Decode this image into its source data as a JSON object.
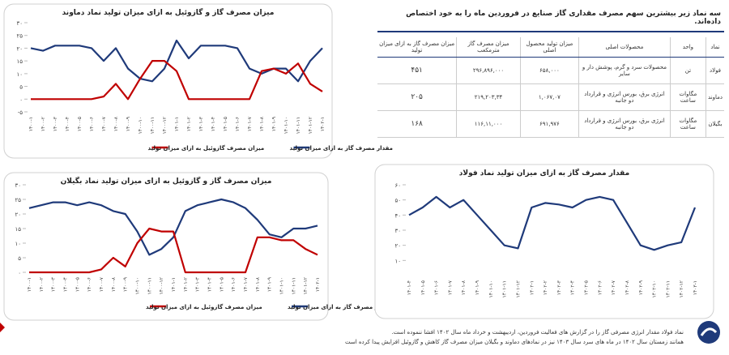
{
  "chart_data": [
    {
      "type": "line",
      "title": "میزان مصرف گاز و گازوئیل به ازای میزان تولید نماد دماوند",
      "categories": [
        "۱۴۰۰-۱",
        "۱۴۰۰-۲",
        "۱۴۰۰-۳",
        "۱۴۰۰-۴",
        "۱۴۰۰-۵",
        "۱۴۰۰-۶",
        "۱۴۰۰-۷",
        "۱۴۰۰-۸",
        "۱۴۰۰-۹",
        "۱۴۰۰-۱۰",
        "۱۴۰۰-۱۱",
        "۱۴۰۰-۱۲",
        "۱۴۰۱-۱",
        "۱۴۰۱-۲",
        "۱۴۰۱-۳",
        "۱۴۰۱-۴",
        "۱۴۰۱-۵",
        "۱۴۰۱-۶",
        "۱۴۰۱-۷",
        "۱۴۰۱-۸",
        "۱۴۰۱-۹",
        "۱۴۰۱-۱۰",
        "۱۴۰۱-۱۱",
        "۱۴۰۱-۱۲",
        "۱۴۰۲-۱"
      ],
      "series": [
        {
          "name": "مقدار مصرف گاز به ازای میزان تولید",
          "color": "#1f3a7a",
          "values": [
            20,
            19,
            21,
            21,
            21,
            20,
            15,
            20,
            12,
            8,
            7,
            12,
            23,
            16,
            21,
            21,
            21,
            20,
            12,
            10,
            12,
            12,
            7,
            15,
            20
          ]
        },
        {
          "name": "میزان مصرف گازوئیل به ازای میزان تولید",
          "color": "#c00000",
          "values": [
            0,
            0,
            0,
            0,
            0,
            0,
            1,
            6,
            0,
            8,
            15,
            15,
            11,
            0,
            0,
            0,
            0,
            0,
            0,
            11,
            12,
            10,
            14,
            6,
            3
          ]
        }
      ],
      "ylim": [
        -5,
        30
      ],
      "yticks": [
        {
          "value": -5,
          "label": "-۵"
        },
        {
          "value": 0,
          "label": "۰"
        },
        {
          "value": 5,
          "label": "۵"
        },
        {
          "value": 10,
          "label": "۱۰"
        },
        {
          "value": 15,
          "label": "۱۵"
        },
        {
          "value": 20,
          "label": "۲۰"
        },
        {
          "value": 25,
          "label": "۲۵"
        },
        {
          "value": 30,
          "label": "۳۰"
        }
      ]
    },
    {
      "type": "line",
      "title": "میزان مصرف گاز و گازوئیل به ازای میزان تولید نماد بگیلان",
      "categories": [
        "۱۴۰۰-۱",
        "۱۴۰۰-۲",
        "۱۴۰۰-۳",
        "۱۴۰۰-۴",
        "۱۴۰۰-۵",
        "۱۴۰۰-۶",
        "۱۴۰۰-۷",
        "۱۴۰۰-۸",
        "۱۴۰۰-۹",
        "۱۴۰۰-۱۰",
        "۱۴۰۰-۱۱",
        "۱۴۰۰-۱۲",
        "۱۴۰۱-۱",
        "۱۴۰۱-۲",
        "۱۴۰۱-۳",
        "۱۴۰۱-۴",
        "۱۴۰۱-۵",
        "۱۴۰۱-۶",
        "۱۴۰۱-۷",
        "۱۴۰۱-۸",
        "۱۴۰۱-۹",
        "۱۴۰۱-۱۰",
        "۱۴۰۱-۱۱",
        "۱۴۰۱-۱۲",
        "۱۴۰۲-۱"
      ],
      "series": [
        {
          "name": "مقدار مصرف گاز به ازای میزان تولید",
          "color": "#1f3a7a",
          "values": [
            22,
            23,
            24,
            24,
            23,
            24,
            23,
            21,
            20,
            14,
            6,
            8,
            12,
            21,
            23,
            24,
            25,
            24,
            22,
            18,
            13,
            12,
            15,
            15,
            16
          ]
        },
        {
          "name": "میزان مصرف گازوئیل به ازای میزان تولید",
          "color": "#c00000",
          "values": [
            0,
            0,
            0,
            0,
            0,
            0,
            1,
            5,
            2,
            10,
            15,
            14,
            14,
            0,
            0,
            0,
            0,
            0,
            0,
            12,
            12,
            11,
            11,
            8,
            6
          ]
        }
      ],
      "ylim": [
        0,
        30
      ],
      "yticks": [
        {
          "value": 0,
          "label": "۰"
        },
        {
          "value": 5,
          "label": "۵"
        },
        {
          "value": 10,
          "label": "۱۰"
        },
        {
          "value": 15,
          "label": "۱۵"
        },
        {
          "value": 20,
          "label": "۲۰"
        },
        {
          "value": 25,
          "label": "۲۵"
        },
        {
          "value": 30,
          "label": "۳۰"
        }
      ]
    },
    {
      "type": "line",
      "title": "مقدار مصرف گاز به ازای میزان تولید نماد فولاد",
      "categories": [
        "۱۴۰۱-۴",
        "۱۴۰۱-۵",
        "۱۴۰۱-۶",
        "۱۴۰۱-۷",
        "۱۴۰۱-۸",
        "۱۴۰۱-۹",
        "۱۴۰۱-۱۰",
        "۱۴۰۱-۱۱",
        "۱۴۰۱-۱۲",
        "۱۴۰۲-۱",
        "۱۴۰۲-۲",
        "۱۴۰۲-۳",
        "۱۴۰۲-۴",
        "۱۴۰۲-۵",
        "۱۴۰۲-۶",
        "۱۴۰۲-۷",
        "۱۴۰۲-۸",
        "۱۴۰۲-۹",
        "۱۴۰۲-۱۰",
        "۱۴۰۲-۱۱",
        "۱۴۰۲-۱۲",
        "۱۴۰۳-۱"
      ],
      "series": [
        {
          "color": "#1f3a7a",
          "values": [
            40,
            45,
            52,
            45,
            50,
            40,
            30,
            20,
            18,
            45,
            48,
            47,
            45,
            50,
            52,
            50,
            35,
            20,
            17,
            20,
            22,
            45
          ]
        }
      ],
      "ylim": [
        0,
        60
      ],
      "yticks": [
        {
          "value": 10,
          "label": "۱۰"
        },
        {
          "value": 20,
          "label": "۲۰"
        },
        {
          "value": 30,
          "label": "۳۰"
        },
        {
          "value": 40,
          "label": "۴۰"
        },
        {
          "value": 50,
          "label": "۵۰"
        },
        {
          "value": 60,
          "label": "۶۰"
        }
      ]
    }
  ],
  "table": {
    "title": "سه نماد زیر بیشترین سهم مصرف مقداری گاز صنایع در فروردین ماه را به خود اختصاص داده‌اند.",
    "headers": [
      "نماد",
      "واحد",
      "محصولات اصلی",
      "میزان تولید محصول اصلی",
      "میزان مصرف گاز مترمکعب",
      "میزان مصرف گاز به ازای میزان تولید"
    ],
    "rows": [
      [
        "فولاد",
        "تن",
        "محصولات سرد و گرم، پوشش دار و سایر",
        "۶۵۸,۰۰۰",
        "۲۹۶,۸۹۶,۰۰۰",
        "۴۵۱"
      ],
      [
        "دماوند",
        "مگاوات ساعت",
        "انرژی برق، بورس انرژی و قرارداد دو جانبه",
        "۱,۰۶۷,۰۷",
        "۲۱۹,۲۰۳,۳۴",
        "۲۰۵"
      ],
      [
        "بگیلان",
        "مگاوات ساعت",
        "انرژی برق، بورس انرژی و قرارداد دو جانبه",
        "۶۹۱,۹۷۶",
        "۱۱۶,۱۱,۰۰۰",
        "۱۶۸"
      ]
    ]
  },
  "notes": [
    "نماد فولاد مقدار انرژی مصرفی گاز را در گزارش های فعالیت فروردین، اردیبهشت و خرداد ماه سال ۱۴۰۲ افشا ننموده است.",
    "همانند زمستان سال ۱۴۰۲ در ماه های سرد سال ۱۴۰۳ نیز در نمادهای دماوند و بگیلان میزان مصرف گاز کاهش و گازوئیل افزایش پیدا کرده است"
  ]
}
